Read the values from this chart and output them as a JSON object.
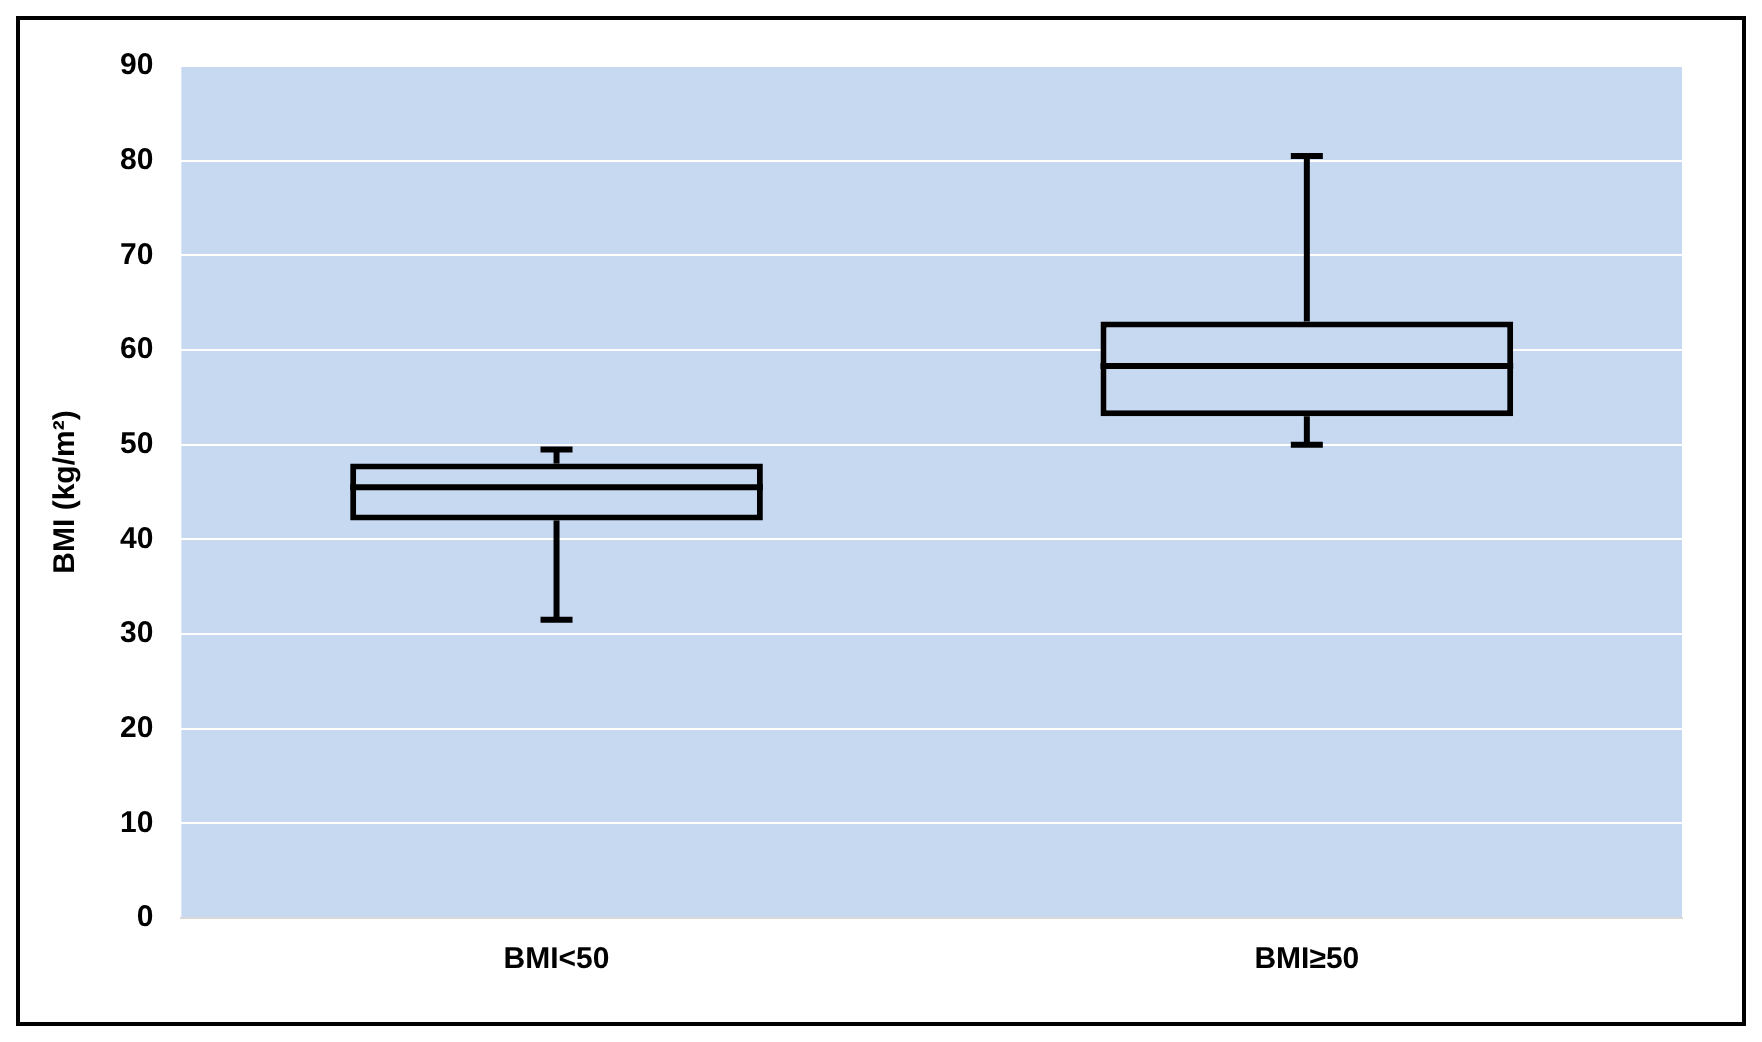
{
  "chart_data": {
    "type": "box",
    "ylabel": "BMI (kg/m²)",
    "categories": [
      "BMI<50",
      "BMI≥50"
    ],
    "boxes": [
      {
        "low": 31.5,
        "q1": 42,
        "median": 45.5,
        "q3": 48,
        "high": 49.5
      },
      {
        "low": 50,
        "q1": 53,
        "median": 58.3,
        "q3": 63,
        "high": 80.5
      }
    ],
    "ylim": [
      0,
      90
    ],
    "yticks": [
      0,
      10,
      20,
      30,
      40,
      50,
      60,
      70,
      80,
      90
    ],
    "grid": "y"
  }
}
